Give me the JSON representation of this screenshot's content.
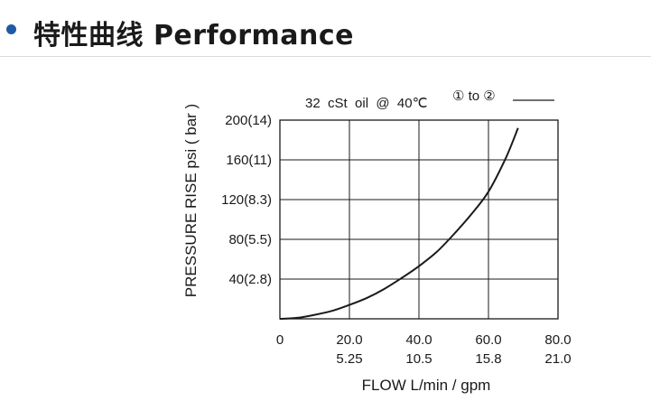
{
  "header": {
    "title": "特性曲线 Performance"
  },
  "chart_data": {
    "type": "line",
    "condition": "32  cSt  oil  @  40℃",
    "flow_direction": "① to ②",
    "xlabel": "FLOW L/min / gpm",
    "ylabel": "PRESSURE RISE psi ( bar )",
    "xlim": [
      0,
      80
    ],
    "ylim": [
      0,
      200
    ],
    "grid": true,
    "x_ticks": [
      {
        "value": 0,
        "label": "0",
        "label2": ""
      },
      {
        "value": 20,
        "label": "20.0",
        "label2": "5.25"
      },
      {
        "value": 40,
        "label": "40.0",
        "label2": "10.5"
      },
      {
        "value": 60,
        "label": "60.0",
        "label2": "15.8"
      },
      {
        "value": 80,
        "label": "80.0",
        "label2": "21.0"
      }
    ],
    "y_ticks": [
      {
        "value": 40,
        "label": "40(2.8)"
      },
      {
        "value": 80,
        "label": "80(5.5)"
      },
      {
        "value": 120,
        "label": "120(8.3)"
      },
      {
        "value": 160,
        "label": "160(11)"
      },
      {
        "value": 200,
        "label": "200(14)"
      }
    ],
    "series": [
      {
        "x": [
          0,
          5,
          10,
          15,
          20,
          25,
          30,
          35,
          40,
          45,
          50,
          55,
          60,
          65,
          68.5
        ],
        "y": [
          0,
          1,
          4,
          8,
          14,
          21,
          30,
          41,
          53,
          67,
          85,
          105,
          128,
          162,
          192
        ]
      }
    ]
  }
}
